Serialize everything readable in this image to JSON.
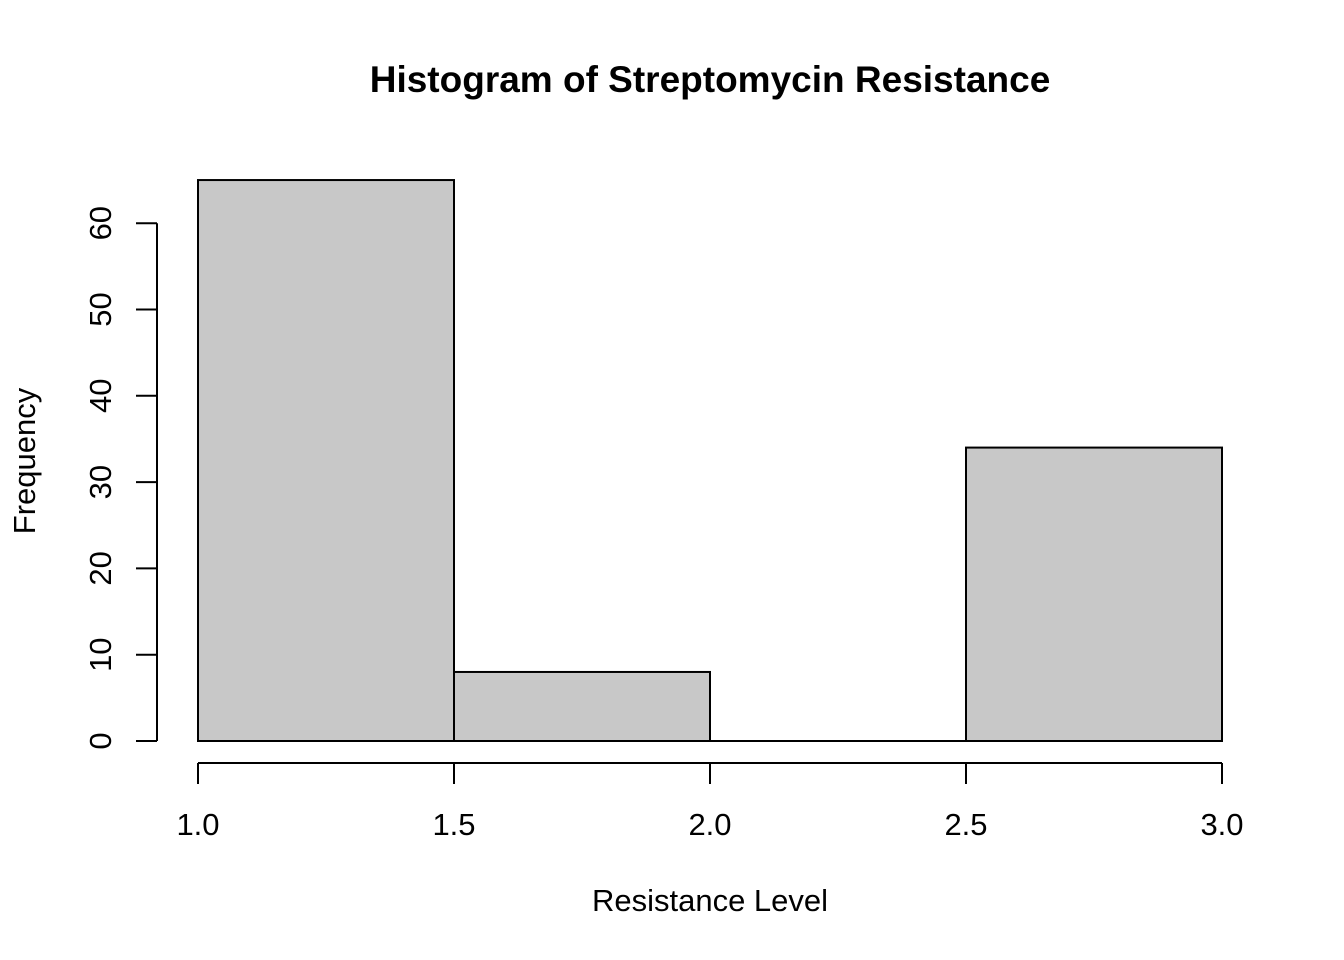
{
  "chart_data": {
    "type": "bar",
    "title": "Histogram of Streptomycin Resistance",
    "xlabel": "Resistance Level",
    "ylabel": "Frequency",
    "bins": [
      {
        "start": 1.0,
        "end": 1.5,
        "count": 65
      },
      {
        "start": 1.5,
        "end": 2.0,
        "count": 8
      },
      {
        "start": 2.0,
        "end": 2.5,
        "count": 0
      },
      {
        "start": 2.5,
        "end": 3.0,
        "count": 34
      }
    ],
    "xlim": [
      1.0,
      3.0
    ],
    "ylim": [
      0,
      65
    ],
    "x_ticks": [
      {
        "value": 1.0,
        "label": "1.0"
      },
      {
        "value": 1.5,
        "label": "1.5"
      },
      {
        "value": 2.0,
        "label": "2.0"
      },
      {
        "value": 2.5,
        "label": "2.5"
      },
      {
        "value": 3.0,
        "label": "3.0"
      }
    ],
    "y_ticks": [
      {
        "value": 0,
        "label": "0"
      },
      {
        "value": 10,
        "label": "10"
      },
      {
        "value": 20,
        "label": "20"
      },
      {
        "value": 30,
        "label": "30"
      },
      {
        "value": 40,
        "label": "40"
      },
      {
        "value": 50,
        "label": "50"
      },
      {
        "value": 60,
        "label": "60"
      }
    ],
    "grid": false,
    "bar_color": "#c8c8c8",
    "edge_color": "#000000"
  }
}
